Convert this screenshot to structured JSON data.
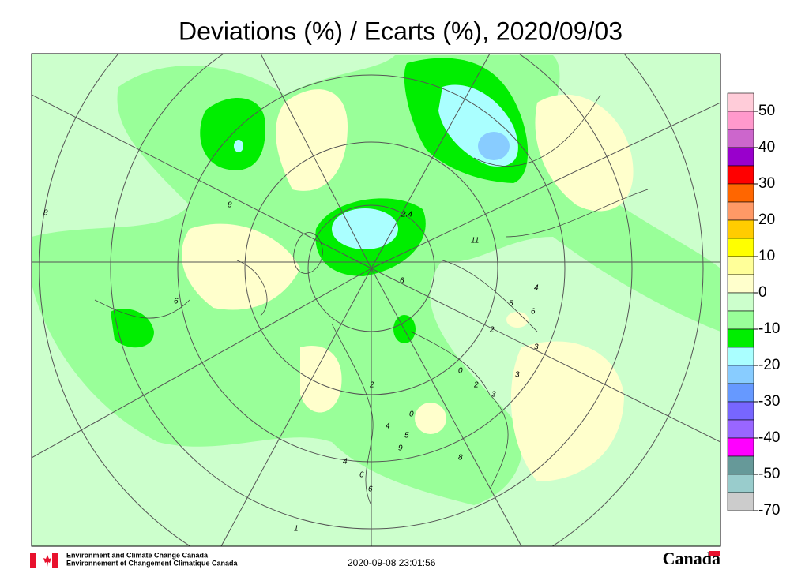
{
  "title": "Deviations (%) / Ecarts (%), 2020/09/03",
  "legend": {
    "labels": [
      50,
      40,
      30,
      20,
      10,
      0,
      -10,
      -20,
      -30,
      -40,
      -50,
      -70
    ],
    "colors": [
      "#ffccd9",
      "#ff99cc",
      "#cc66cc",
      "#9900cc",
      "#ff0000",
      "#ff6600",
      "#ff9966",
      "#ffcc00",
      "#ffff00",
      "#ffff99",
      "#ffffcc",
      "#ccffcc",
      "#99ff99",
      "#00ee00",
      "#aaffff",
      "#88ccff",
      "#6699ff",
      "#7766ff",
      "#9966ff",
      "#ff00ff",
      "#669999",
      "#99cccc",
      "#cccccc"
    ]
  },
  "stations": [
    "8",
    "8",
    "6",
    "2.4",
    "11",
    "6",
    "4",
    "5",
    "6",
    "2",
    "3",
    "3",
    "0",
    "2",
    "3",
    "2",
    "0",
    "4",
    "5",
    "9",
    "6",
    "8",
    "1",
    "4",
    "6"
  ],
  "footer": {
    "org_en": "Environment and Climate Change Canada",
    "org_fr": "Environnement et Changement Climatique Canada",
    "timestamp": "2020-09-08 23:01:56",
    "wordmark": "Canada"
  }
}
